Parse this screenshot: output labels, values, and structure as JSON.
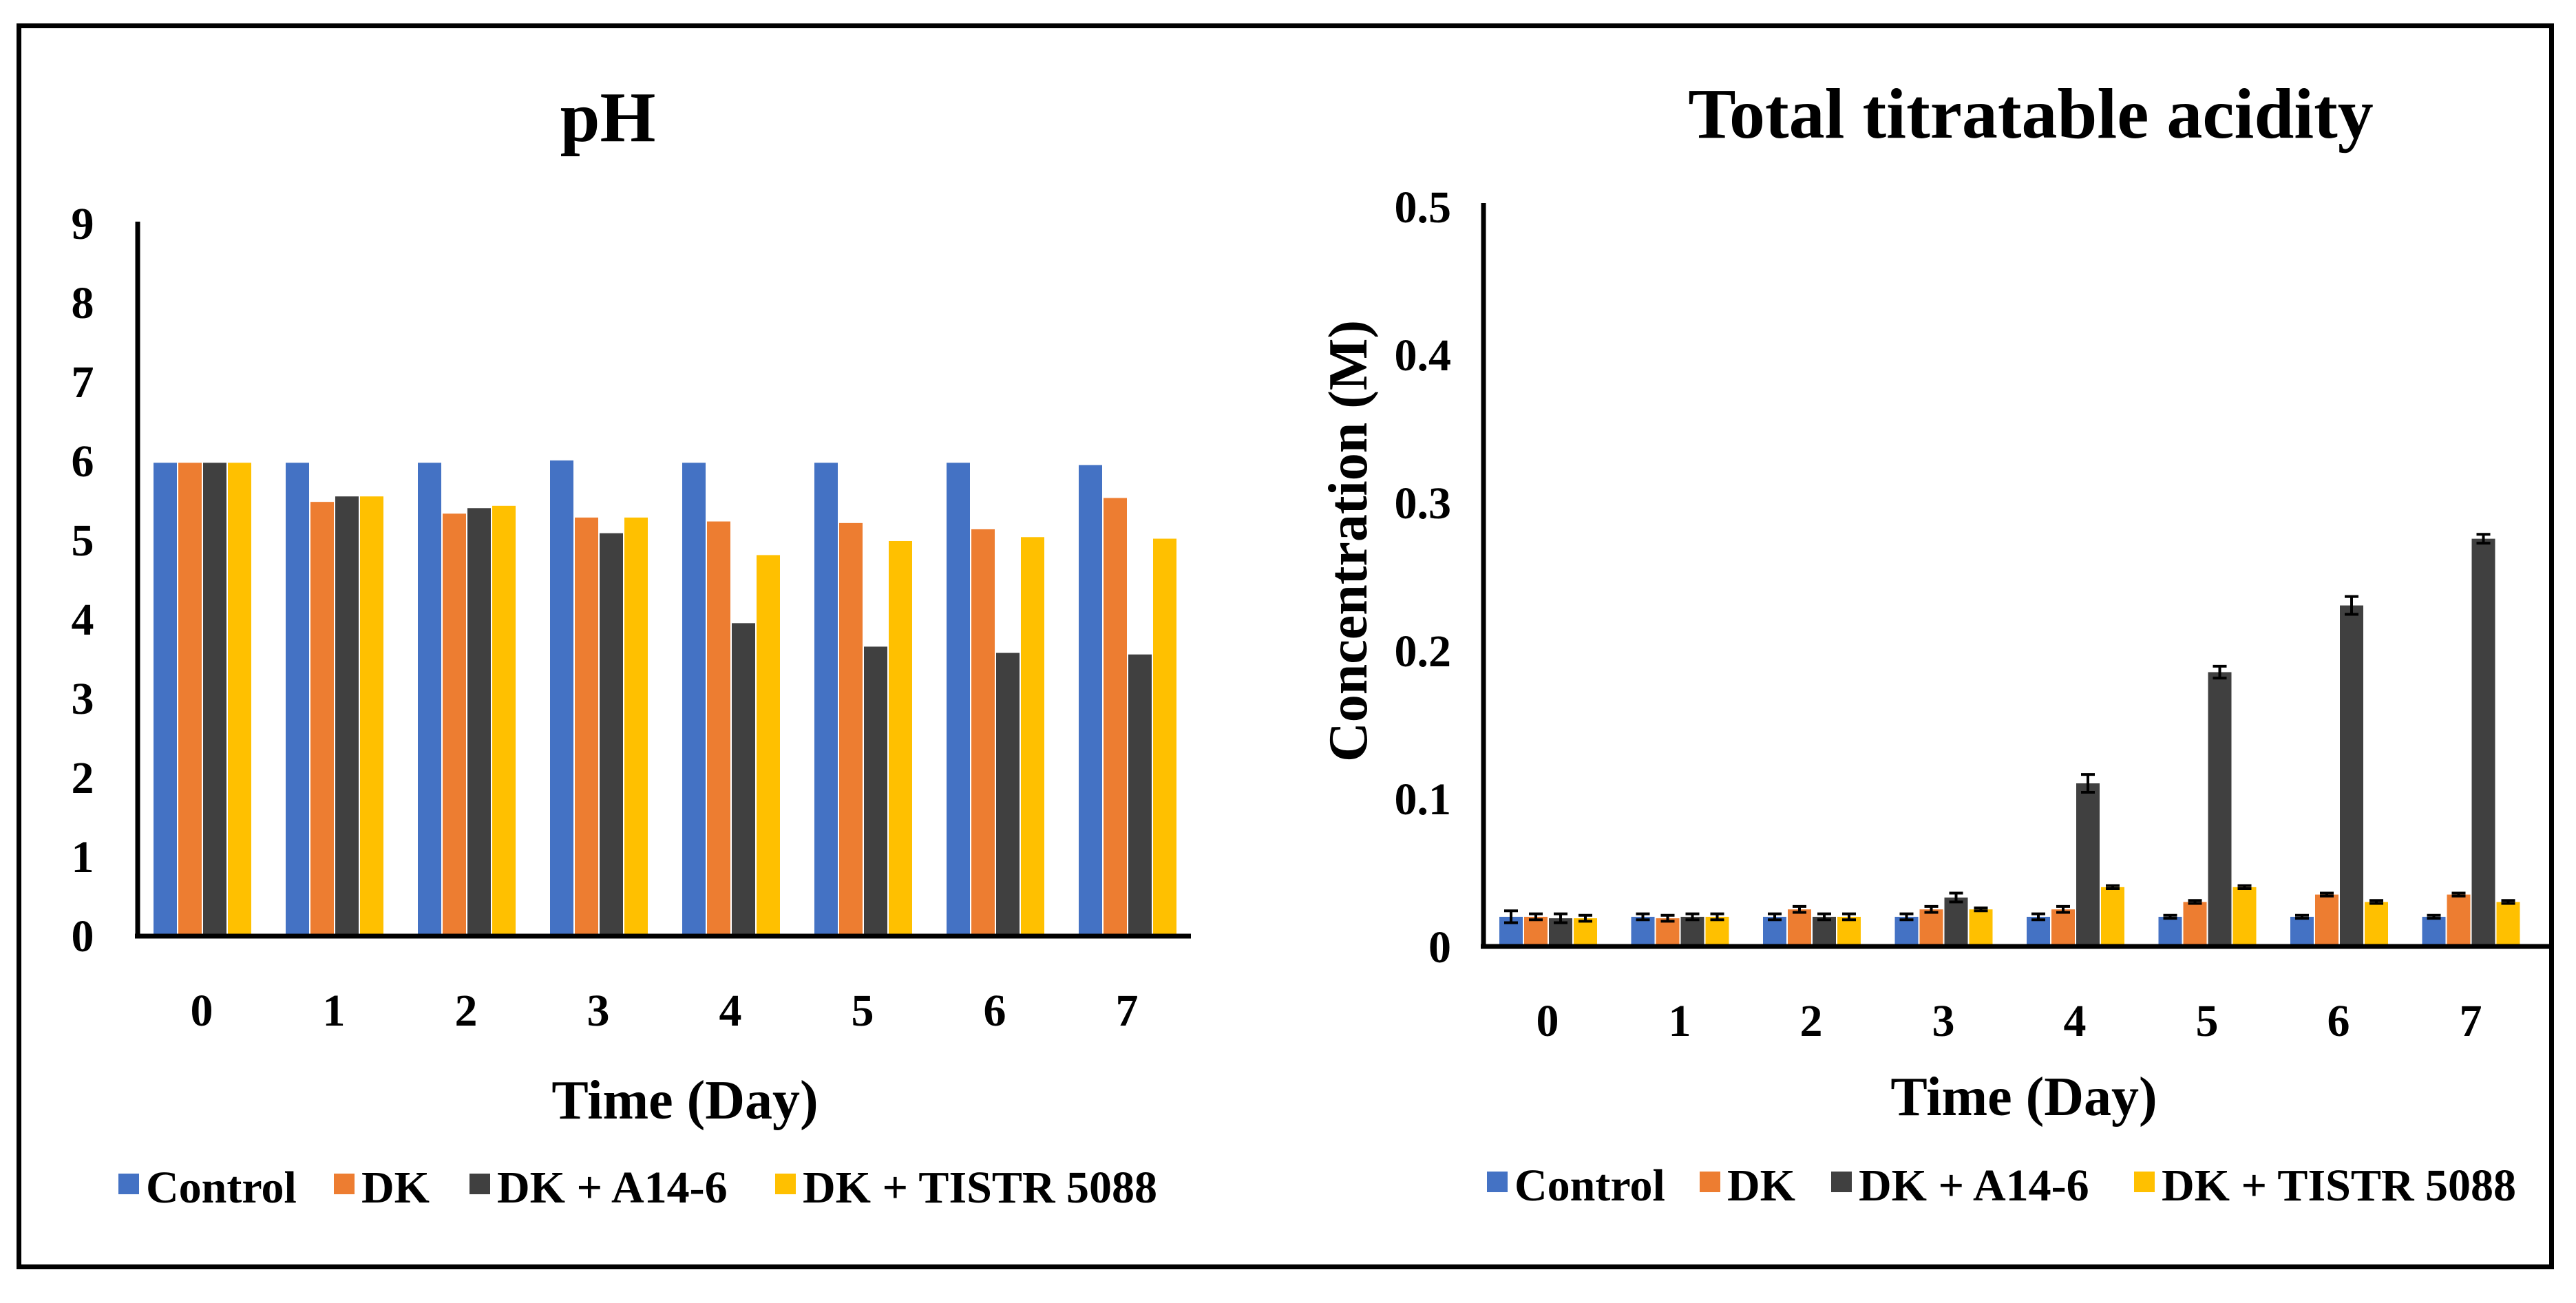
{
  "colors": {
    "Control": "#4472c4",
    "DK": "#ed7d31",
    "DK + A14-6": "#404040",
    "DK + TISTR 5088": "#ffc000"
  },
  "chart_data": [
    {
      "type": "bar",
      "title": "pH",
      "xlabel": "Time (Day)",
      "ylabel": "",
      "ylim": [
        0,
        9
      ],
      "yticks": [
        "0",
        "1",
        "2",
        "3",
        "4",
        "5",
        "6",
        "7",
        "8",
        "9"
      ],
      "categories": [
        "0",
        "1",
        "2",
        "3",
        "4",
        "5",
        "6",
        "7"
      ],
      "legend_position": "bottom",
      "grid": false,
      "series": [
        {
          "name": "Control",
          "values": [
            6.05,
            6.05,
            6.05,
            6.08,
            6.05,
            6.05,
            6.05,
            6.02
          ]
        },
        {
          "name": "DK",
          "values": [
            6.05,
            5.55,
            5.4,
            5.35,
            5.3,
            5.28,
            5.2,
            5.6
          ]
        },
        {
          "name": "DK + A14-6",
          "values": [
            6.05,
            5.62,
            5.47,
            5.15,
            4.0,
            3.7,
            3.62,
            3.6
          ]
        },
        {
          "name": "DK + TISTR 5088",
          "values": [
            6.05,
            5.62,
            5.5,
            5.35,
            4.87,
            5.05,
            5.1,
            5.08
          ]
        }
      ]
    },
    {
      "type": "bar",
      "title": "Total titratable acidity",
      "xlabel": "Time (Day)",
      "ylabel": "Concentration (M)",
      "ylim": [
        0,
        0.5
      ],
      "yticks": [
        "0",
        "0.1",
        "0.2",
        "0.3",
        "0.4",
        "0.5"
      ],
      "categories": [
        "0",
        "1",
        "2",
        "3",
        "4",
        "5",
        "6",
        "7"
      ],
      "legend_position": "bottom",
      "grid": false,
      "series": [
        {
          "name": "Control",
          "values": [
            0.02,
            0.02,
            0.02,
            0.02,
            0.02,
            0.02,
            0.02,
            0.02
          ],
          "errors": [
            0.004,
            0.002,
            0.002,
            0.002,
            0.002,
            0.001,
            0.001,
            0.001
          ]
        },
        {
          "name": "DK",
          "values": [
            0.02,
            0.019,
            0.025,
            0.025,
            0.025,
            0.03,
            0.035,
            0.035
          ],
          "errors": [
            0.002,
            0.002,
            0.002,
            0.002,
            0.002,
            0.001,
            0.001,
            0.001
          ]
        },
        {
          "name": "DK + A14-6",
          "values": [
            0.019,
            0.02,
            0.02,
            0.033,
            0.11,
            0.185,
            0.23,
            0.275
          ],
          "errors": [
            0.003,
            0.002,
            0.002,
            0.003,
            0.006,
            0.004,
            0.006,
            0.003
          ]
        },
        {
          "name": "DK + TISTR 5088",
          "values": [
            0.019,
            0.02,
            0.02,
            0.025,
            0.04,
            0.04,
            0.03,
            0.03
          ],
          "errors": [
            0.002,
            0.002,
            0.002,
            0.001,
            0.001,
            0.001,
            0.001,
            0.001
          ]
        }
      ]
    }
  ]
}
